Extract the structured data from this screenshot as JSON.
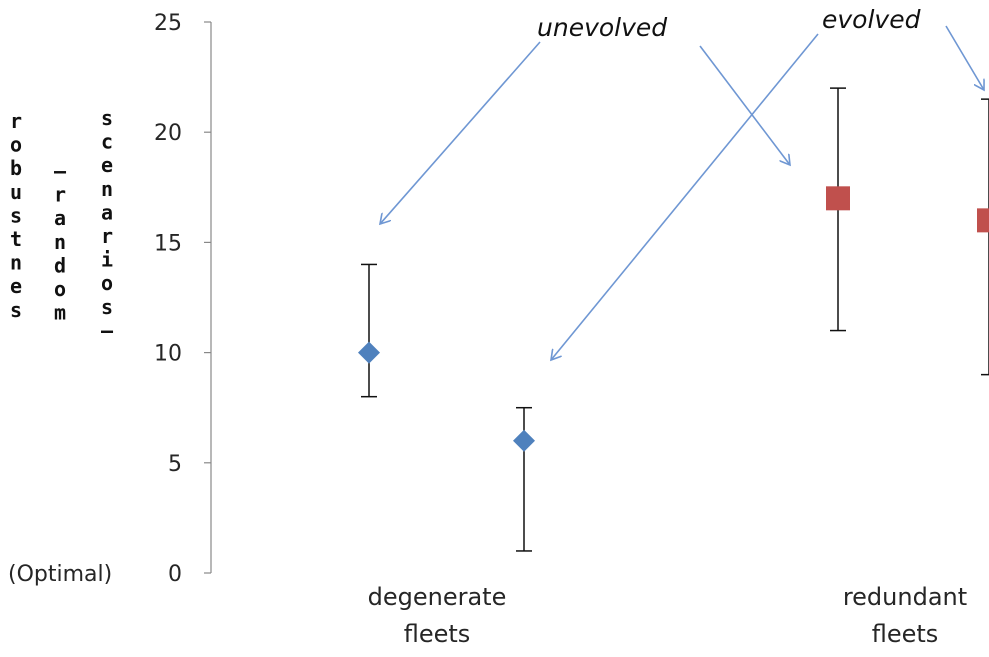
{
  "chart_data": {
    "type": "scatter",
    "ylim": [
      0,
      25
    ],
    "yticks": [
      0,
      5,
      10,
      15,
      20,
      25
    ],
    "ylabel_words": [
      "robustnes",
      "(random",
      "scenarios)"
    ],
    "ylabel_zero_note": "(Optimal)",
    "categories": [
      "degenerate fleets",
      "redundant fleets"
    ],
    "category_lines": [
      [
        "degenerate",
        "fleets"
      ],
      [
        "redundant",
        "fleets"
      ]
    ],
    "series": [
      {
        "color": "#4f81bd",
        "marker": "diamond",
        "points": [
          {
            "x": "degenerate fleets",
            "y": 10,
            "low": 8,
            "high": 14
          },
          {
            "x": "degenerate fleets",
            "y": 6,
            "low": 1,
            "high": 7.5
          }
        ]
      },
      {
        "color": "#c0504d",
        "marker": "square",
        "points": [
          {
            "x": "redundant fleets",
            "y": 17,
            "low": 11,
            "high": 22
          },
          {
            "x": "redundant fleets",
            "y": 16,
            "low": 9,
            "high": 21.5
          }
        ]
      }
    ],
    "annotations": [
      "unevolved",
      "evolved"
    ],
    "arrow_color": "#6f97d3",
    "grid": false,
    "legend": "none"
  }
}
